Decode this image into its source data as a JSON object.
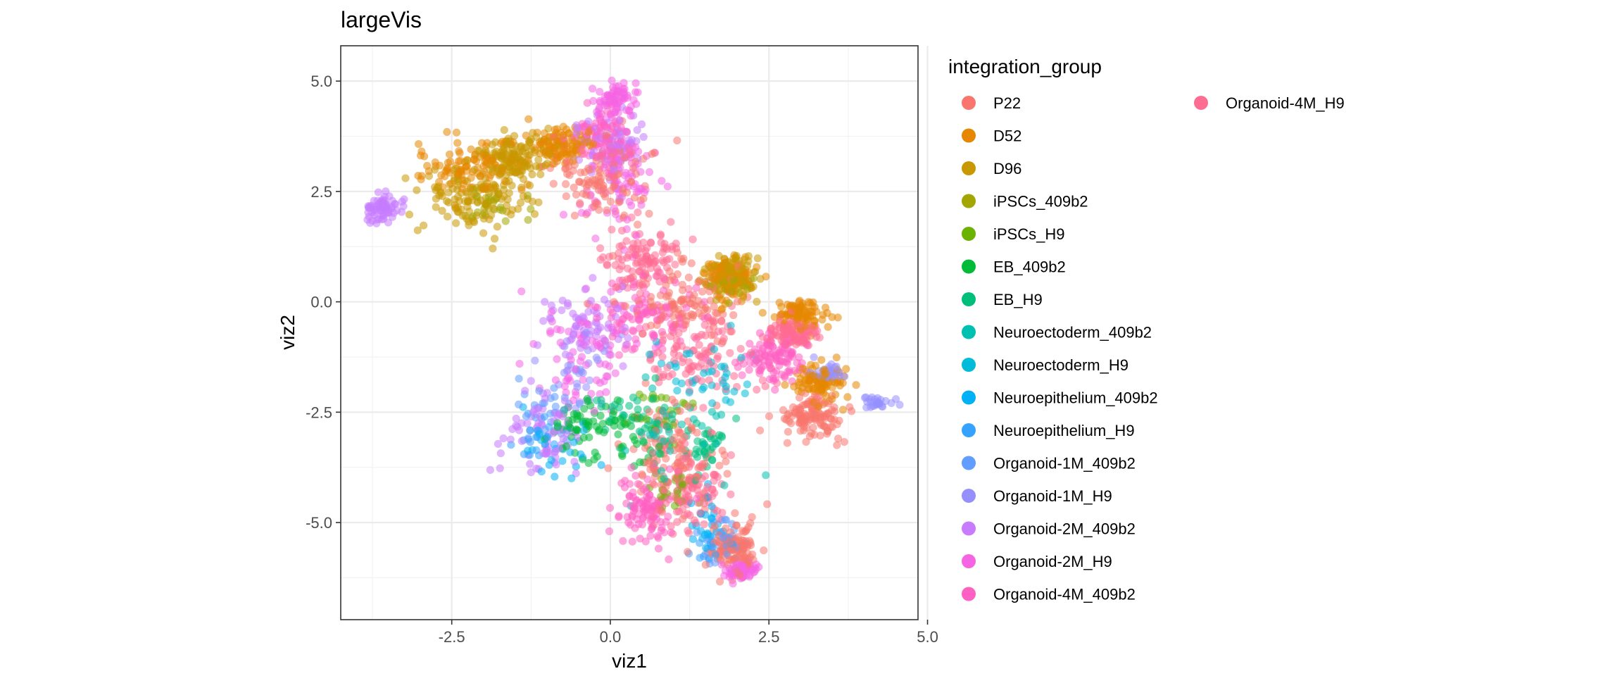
{
  "chart_data": {
    "type": "scatter",
    "title": "largeVis",
    "xlabel": "viz1",
    "ylabel": "viz2",
    "xlim": [
      -4.25,
      4.85
    ],
    "ylim": [
      -7.2,
      5.8
    ],
    "x_ticks": [
      -2.5,
      0.0,
      2.5,
      5.0
    ],
    "y_ticks": [
      -5.0,
      -2.5,
      0.0,
      2.5,
      5.0
    ],
    "x_tick_labels": [
      "-2.5",
      "0.0",
      "2.5",
      "5.0"
    ],
    "y_tick_labels": [
      "-5.0",
      "-2.5",
      "0.0",
      "2.5",
      "5.0"
    ],
    "grid": true,
    "legend": {
      "title": "integration_group",
      "position": "right",
      "columns": 2
    },
    "point_alpha": 0.55,
    "series": [
      {
        "name": "P22",
        "color": "#F8766D",
        "count": 600,
        "regions": [
          [
            1.2,
            0.0,
            0.9,
            0.9
          ],
          [
            1.0,
            -3.5,
            0.7,
            1.2
          ],
          [
            2.0,
            -5.6,
            0.4,
            0.6
          ],
          [
            3.2,
            -2.6,
            0.5,
            0.5
          ],
          [
            -0.2,
            2.8,
            0.8,
            0.9
          ]
        ]
      },
      {
        "name": "D52",
        "color": "#E58700",
        "count": 500,
        "regions": [
          [
            -2.3,
            3.0,
            0.9,
            0.65
          ],
          [
            -0.8,
            3.6,
            0.5,
            0.4
          ],
          [
            1.9,
            0.5,
            0.4,
            0.5
          ],
          [
            3.0,
            -0.3,
            0.4,
            0.3
          ],
          [
            3.3,
            -1.8,
            0.4,
            0.4
          ]
        ]
      },
      {
        "name": "D96",
        "color": "#C99800",
        "count": 400,
        "regions": [
          [
            -2.1,
            2.4,
            0.9,
            0.7
          ],
          [
            -1.5,
            3.3,
            0.5,
            0.5
          ],
          [
            1.9,
            0.6,
            0.35,
            0.4
          ]
        ]
      },
      {
        "name": "iPSCs_409b2",
        "color": "#A3A500",
        "count": 50,
        "regions": [
          [
            -1.8,
            2.2,
            0.5,
            0.4
          ],
          [
            1.9,
            0.4,
            0.3,
            0.4
          ]
        ]
      },
      {
        "name": "iPSCs_H9",
        "color": "#6BB100",
        "count": 50,
        "regions": [
          [
            0.8,
            -2.6,
            0.6,
            0.8
          ],
          [
            1.0,
            -4.3,
            0.4,
            0.4
          ]
        ]
      },
      {
        "name": "EB_409b2",
        "color": "#00BA38",
        "count": 90,
        "regions": [
          [
            0.2,
            -3.0,
            0.6,
            0.9
          ],
          [
            -0.5,
            -2.8,
            0.4,
            0.5
          ]
        ]
      },
      {
        "name": "EB_H9",
        "color": "#00BF7D",
        "count": 70,
        "regions": [
          [
            0.5,
            -2.5,
            0.6,
            0.8
          ],
          [
            1.5,
            -3.2,
            0.4,
            0.6
          ]
        ]
      },
      {
        "name": "Neuroectoderm_409b2",
        "color": "#00C0AF",
        "count": 40,
        "regions": [
          [
            0.9,
            -3.0,
            0.9,
            1.2
          ]
        ]
      },
      {
        "name": "Neuroectoderm_H9",
        "color": "#00BCD8",
        "count": 40,
        "regions": [
          [
            1.6,
            -1.6,
            0.8,
            1.0
          ]
        ]
      },
      {
        "name": "Neuroepithelium_409b2",
        "color": "#00B0F6",
        "count": 50,
        "regions": [
          [
            -0.7,
            -3.2,
            0.6,
            0.8
          ],
          [
            1.5,
            -5.0,
            0.4,
            0.6
          ]
        ]
      },
      {
        "name": "Neuroepithelium_H9",
        "color": "#35A2FF",
        "count": 40,
        "regions": [
          [
            -1.2,
            -3.1,
            0.4,
            0.6
          ],
          [
            1.6,
            -5.5,
            0.3,
            0.4
          ]
        ]
      },
      {
        "name": "Organoid-1M_409b2",
        "color": "#619CFF",
        "count": 60,
        "regions": [
          [
            -0.9,
            -2.3,
            0.6,
            0.8
          ],
          [
            1.8,
            -5.4,
            0.4,
            0.5
          ]
        ]
      },
      {
        "name": "Organoid-1M_H9",
        "color": "#9590FF",
        "count": 80,
        "regions": [
          [
            -0.5,
            -1.5,
            0.6,
            0.8
          ],
          [
            3.5,
            -1.6,
            0.3,
            0.3
          ],
          [
            4.2,
            -2.3,
            0.25,
            0.15
          ]
        ]
      },
      {
        "name": "Organoid-2M_409b2",
        "color": "#C77CFF",
        "count": 300,
        "regions": [
          [
            -1.0,
            -3.0,
            0.6,
            1.0
          ],
          [
            -0.3,
            -0.5,
            0.7,
            0.9
          ],
          [
            -3.6,
            2.1,
            0.25,
            0.3
          ],
          [
            0.0,
            3.5,
            0.5,
            0.8
          ]
        ]
      },
      {
        "name": "Organoid-2M_H9",
        "color": "#F564E3",
        "count": 300,
        "regions": [
          [
            0.1,
            4.6,
            0.3,
            0.45
          ],
          [
            0.2,
            2.7,
            0.6,
            1.0
          ],
          [
            -0.4,
            -1.2,
            0.8,
            1.3
          ],
          [
            2.1,
            -6.1,
            0.25,
            0.2
          ]
        ]
      },
      {
        "name": "Organoid-4M_409b2",
        "color": "#FF61C3",
        "count": 400,
        "regions": [
          [
            0.6,
            -0.3,
            0.7,
            0.9
          ],
          [
            -0.1,
            3.7,
            0.5,
            0.6
          ],
          [
            0.6,
            -4.7,
            0.5,
            0.8
          ],
          [
            2.6,
            -1.3,
            0.5,
            0.5
          ]
        ]
      },
      {
        "name": "Organoid-4M_H9",
        "color": "#FF6C91",
        "count": 400,
        "regions": [
          [
            1.4,
            -1.2,
            0.9,
            0.9
          ],
          [
            0.5,
            1.0,
            0.6,
            0.8
          ],
          [
            1.3,
            -4.3,
            0.6,
            0.9
          ],
          [
            2.9,
            -0.7,
            0.4,
            0.3
          ]
        ]
      }
    ]
  }
}
